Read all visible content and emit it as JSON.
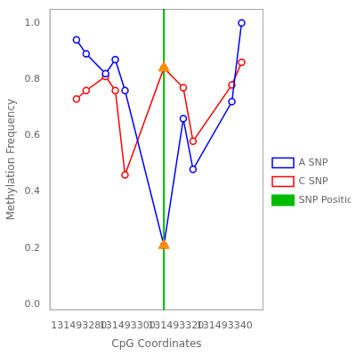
{
  "chart_data": {
    "type": "line",
    "xlabel": "CpG Coordinates",
    "ylabel": "Methylation Frequency",
    "series": [
      {
        "name": "A SNP",
        "color": "#0000FF",
        "marker": "circle",
        "x": [
          131493279,
          131493283,
          131493291,
          131493295,
          131493299,
          131493315,
          131493323,
          131493327,
          131493343,
          131493347
        ],
        "values": [
          0.94,
          0.89,
          0.82,
          0.87,
          0.76,
          0.21,
          0.66,
          0.48,
          0.72,
          1.0
        ]
      },
      {
        "name": "C SNP",
        "color": "#FF0000",
        "marker": "circle",
        "x": [
          131493279,
          131493283,
          131493291,
          131493295,
          131493299,
          131493315,
          131493323,
          131493327,
          131493343,
          131493347
        ],
        "values": [
          0.73,
          0.76,
          0.81,
          0.76,
          0.46,
          0.84,
          0.77,
          0.58,
          0.78,
          0.86
        ]
      },
      {
        "name": "SNP Position",
        "type": "vline",
        "color": "#00BB00",
        "x": 131493315
      },
      {
        "type": "scatter",
        "marker": "triangle",
        "color": "#FF8C00",
        "x": [
          131493315,
          131493315
        ],
        "values": [
          0.21,
          0.84
        ]
      }
    ],
    "xlim": [
      131493268,
      131493356
    ],
    "ylim": [
      -0.02,
      1.05
    ],
    "xticks": [
      131493280,
      131493300,
      131493320,
      131493340
    ],
    "yticks": [
      {
        "value": 0.0,
        "label": "0.0"
      },
      0.2,
      0.4,
      0.6,
      0.8,
      {
        "value": 1.0,
        "label": "1.0"
      }
    ],
    "grid": false,
    "legend": "right"
  }
}
